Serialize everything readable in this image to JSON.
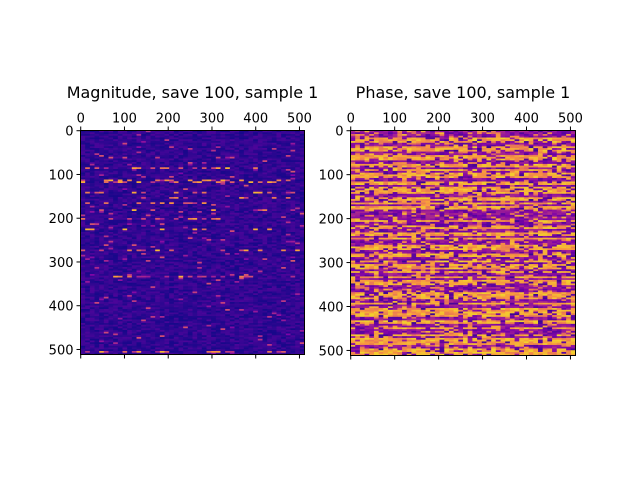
{
  "chart_data": [
    {
      "type": "heatmap",
      "title": "Magnitude, save 100, sample 1",
      "xlabel": "",
      "ylabel": "",
      "x_ticks": [
        0,
        100,
        200,
        300,
        400,
        500
      ],
      "y_ticks": [
        0,
        100,
        200,
        300,
        400,
        500
      ],
      "xlim": [
        -0.5,
        511.5
      ],
      "ylim": [
        511.5,
        -0.5
      ],
      "x_axis_position": "top",
      "shape": [
        512,
        512
      ],
      "colormap": "plasma",
      "description_values": "mostly low values (dark blue) with sparse bright horizontal streaks"
    },
    {
      "type": "heatmap",
      "title": "Phase, save 100, sample 1",
      "xlabel": "",
      "ylabel": "",
      "x_ticks": [
        0,
        100,
        200,
        300,
        400,
        500
      ],
      "y_ticks": [
        0,
        100,
        200,
        300,
        400,
        500
      ],
      "xlim": [
        -0.5,
        511.5
      ],
      "ylim": [
        511.5,
        -0.5
      ],
      "x_axis_position": "top",
      "shape": [
        512,
        512
      ],
      "colormap": "plasma",
      "description_values": "alternating horizontal bands of purple and orange/yellow"
    }
  ],
  "colors": {
    "plasma_low": "#0d0887",
    "plasma_mid_purple": "#7e03a8",
    "plasma_pink": "#cc4778",
    "plasma_orange": "#f89540",
    "plasma_high": "#f0f921"
  }
}
